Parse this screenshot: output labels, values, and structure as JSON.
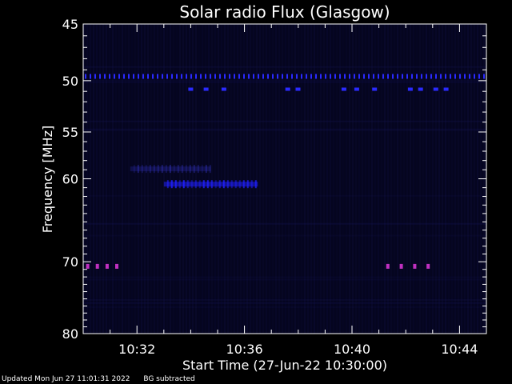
{
  "chart_data": {
    "type": "heatmap",
    "title": "Solar radio Flux (Glasgow)",
    "xlabel": "Start Time (27-Jun-22 10:30:00)",
    "ylabel": "Frequency [MHz]",
    "xlim": [
      "10:30:00",
      "10:45:00"
    ],
    "ylim": [
      80,
      45
    ],
    "y_scale": "log (decreasing upward)",
    "xticks": [
      "10:32",
      "10:36",
      "10:40",
      "10:44"
    ],
    "xtick_minutes": [
      32,
      36,
      40,
      44
    ],
    "yticks": [
      45,
      50,
      55,
      60,
      70,
      80
    ],
    "grid": false,
    "colormap": "black → dark blue → blue → purple",
    "features": [
      {
        "label": "periodic interference band",
        "freq_mhz": 49.6,
        "start": "10:30:00",
        "end": "10:45:00",
        "intensity": 0.85,
        "color": "#2a2aff"
      },
      {
        "label": "burst",
        "freq_mhz": 58.9,
        "start": "10:31:45",
        "end": "10:34:45",
        "intensity": 0.45,
        "color": "#3535c8"
      },
      {
        "label": "burst",
        "freq_mhz": 60.6,
        "start": "10:33:00",
        "end": "10:36:30",
        "intensity": 0.95,
        "color": "#2020ff"
      },
      {
        "label": "spots",
        "freq_mhz": 50.8,
        "start": "10:34:00",
        "end": "10:43:30",
        "intensity": 0.6,
        "color": "#2a2aff"
      },
      {
        "label": "purple spots",
        "freq_mhz": 70.6,
        "start": "10:30:10",
        "end": "10:31:15",
        "intensity": 0.7,
        "color": "#c030c0"
      },
      {
        "label": "purple spots",
        "freq_mhz": 70.6,
        "start": "10:41:20",
        "end": "10:42:50",
        "intensity": 0.7,
        "color": "#c030c0"
      }
    ]
  },
  "footer": {
    "updated": "Updated Mon Jun 27 11:01:31 2022",
    "note": "BG subtracted"
  }
}
